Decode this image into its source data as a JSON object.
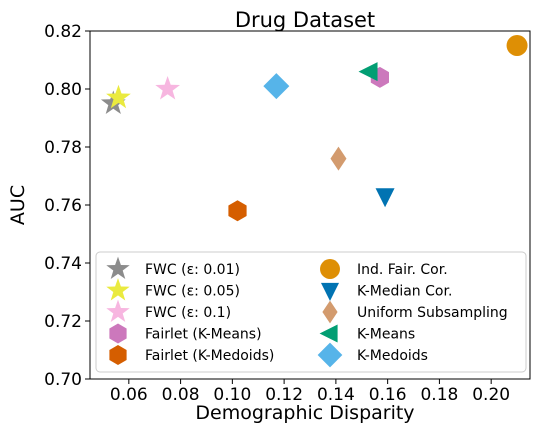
{
  "chart_data": {
    "type": "scatter",
    "title": "Drug Dataset",
    "xlabel": "Demographic Disparity",
    "ylabel": "AUC",
    "xlim": [
      0.045,
      0.215
    ],
    "ylim": [
      0.7,
      0.82
    ],
    "xticks": [
      0.06,
      0.08,
      0.1,
      0.12,
      0.14,
      0.16,
      0.18,
      0.2
    ],
    "xtick_labels": [
      "0.06",
      "0.08",
      "0.10",
      "0.12",
      "0.14",
      "0.16",
      "0.18",
      "0.20"
    ],
    "yticks": [
      0.7,
      0.72,
      0.74,
      0.76,
      0.78,
      0.8,
      0.82
    ],
    "ytick_labels": [
      "0.70",
      "0.72",
      "0.74",
      "0.76",
      "0.78",
      "0.80",
      "0.82"
    ],
    "grid": false,
    "legend_placement": "lower-center, two columns",
    "series": [
      {
        "name": "FWC (ε: 0.01)",
        "marker": "star",
        "color": "#8c8c8c",
        "x": 0.054,
        "y": 0.795
      },
      {
        "name": "FWC (ε: 0.05)",
        "marker": "star",
        "color": "#eaea3f",
        "x": 0.056,
        "y": 0.797
      },
      {
        "name": "FWC (ε: 0.1)",
        "marker": "star",
        "color": "#f7b6e0",
        "x": 0.075,
        "y": 0.8
      },
      {
        "name": "Fairlet (K-Means)",
        "marker": "hexagon",
        "color": "#cc78bc",
        "x": 0.157,
        "y": 0.804
      },
      {
        "name": "Fairlet (K-Medoids)",
        "marker": "hexagon",
        "color": "#d55e00",
        "x": 0.102,
        "y": 0.758
      },
      {
        "name": "Ind. Fair. Cor.",
        "marker": "circle",
        "color": "#de8f05",
        "x": 0.21,
        "y": 0.815
      },
      {
        "name": "K-Median Cor.",
        "marker": "triangle-down",
        "color": "#0173b2",
        "x": 0.159,
        "y": 0.763
      },
      {
        "name": "Uniform Subsampling",
        "marker": "thin-diamond",
        "color": "#d39b6e",
        "x": 0.141,
        "y": 0.776
      },
      {
        "name": "K-Means",
        "marker": "triangle-left",
        "color": "#029e73",
        "x": 0.153,
        "y": 0.806
      },
      {
        "name": "K-Medoids",
        "marker": "diamond",
        "color": "#56b4e9",
        "x": 0.117,
        "y": 0.801
      }
    ]
  }
}
